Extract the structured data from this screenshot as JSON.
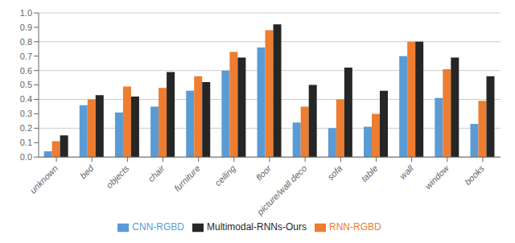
{
  "chart_data": {
    "type": "bar",
    "categories": [
      "unknown",
      "bed",
      "objects",
      "chair",
      "furniture",
      "ceiling",
      "floor",
      "picture/wall deco",
      "sofa",
      "table",
      "wall",
      "window",
      "books"
    ],
    "series": [
      {
        "name": "CNN-RGBD",
        "color": "#5B9BD5",
        "values": [
          0.04,
          0.36,
          0.31,
          0.35,
          0.46,
          0.6,
          0.76,
          0.24,
          0.2,
          0.21,
          0.7,
          0.41,
          0.23
        ]
      },
      {
        "name": "RNN-RGBD",
        "color": "#ED7D31",
        "values": [
          0.11,
          0.4,
          0.49,
          0.48,
          0.56,
          0.73,
          0.88,
          0.35,
          0.4,
          0.3,
          0.8,
          0.61,
          0.39
        ]
      },
      {
        "name": "Multimodal-RNNs-Ours",
        "color": "#262626",
        "values": [
          0.15,
          0.43,
          0.42,
          0.59,
          0.52,
          0.69,
          0.92,
          0.5,
          0.62,
          0.46,
          0.8,
          0.69,
          0.56
        ]
      }
    ],
    "ylim": [
      0,
      1.0
    ],
    "yticks": [
      {
        "value": 0,
        "label": "0.0"
      },
      0.1,
      0.2,
      0.3,
      0.4,
      0.5,
      0.6,
      0.7,
      0.8,
      0.9,
      {
        "value": 1.0,
        "label": "1.0"
      }
    ],
    "grid": true,
    "legend": "bottom"
  }
}
